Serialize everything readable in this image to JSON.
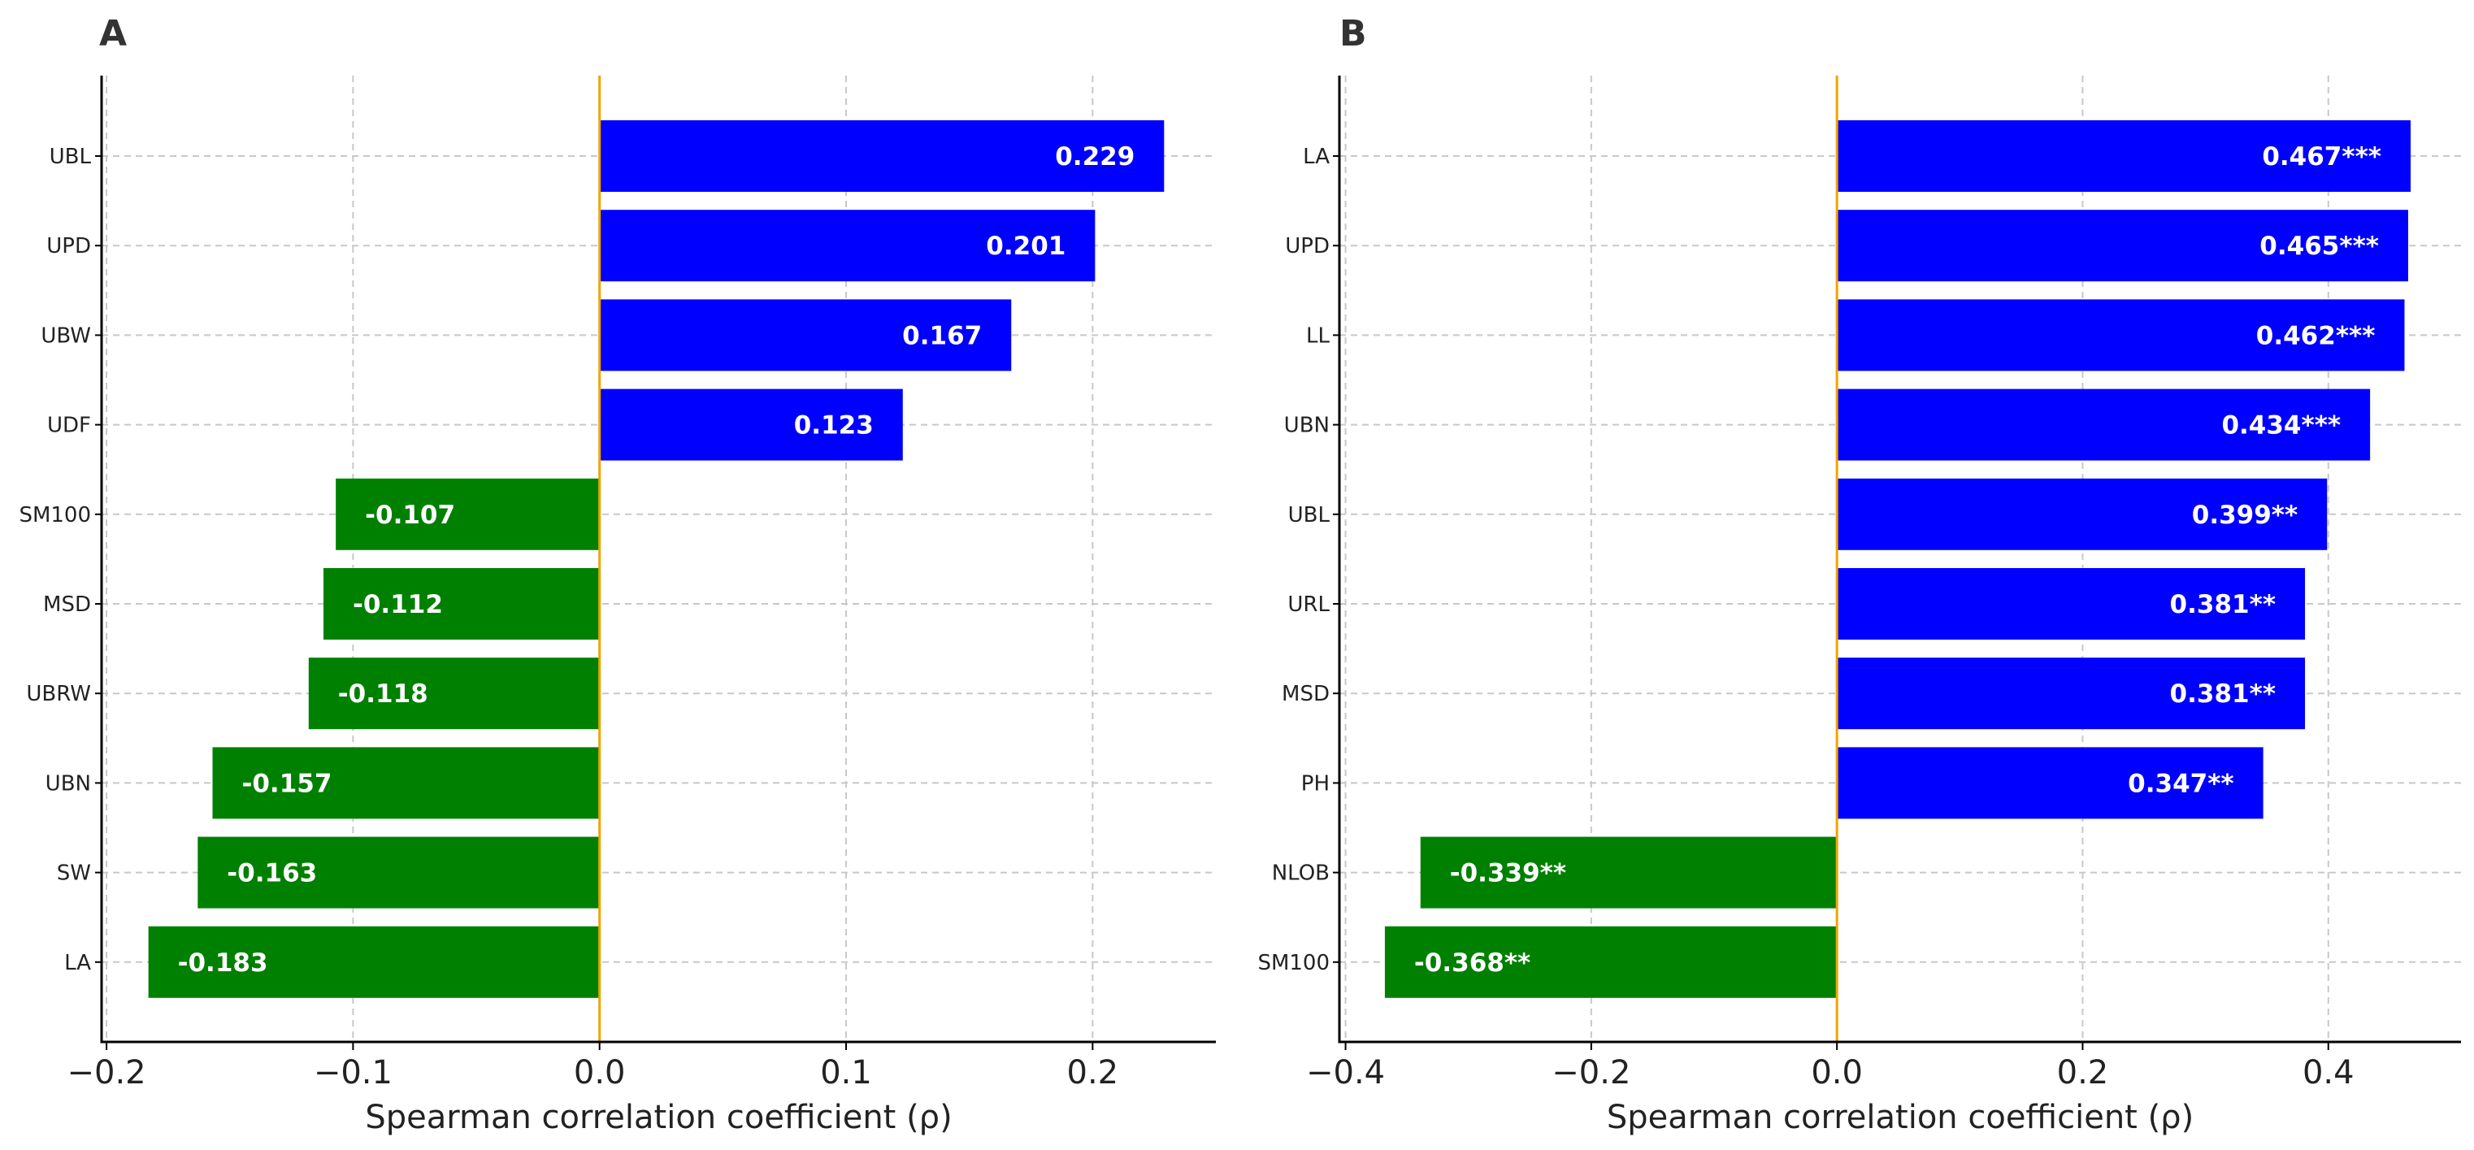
{
  "chart_data": [
    {
      "panel": "A",
      "type": "bar",
      "orientation": "horizontal",
      "categories": [
        "UBL",
        "UPD",
        "UBW",
        "UDF",
        "SM100",
        "MSD",
        "UBRW",
        "UBN",
        "SW",
        "LA"
      ],
      "values": [
        0.229,
        0.201,
        0.167,
        0.123,
        -0.107,
        -0.112,
        -0.118,
        -0.157,
        -0.163,
        -0.183
      ],
      "labels": [
        "0.229",
        "0.201",
        "0.167",
        "0.123",
        "-0.107",
        "-0.112",
        "-0.118",
        "-0.157",
        "-0.163",
        "-0.183"
      ],
      "xlabel": "Spearman correlation coefficient (ρ)",
      "xlim": [
        -0.202,
        0.25
      ],
      "xticks": [
        -0.2,
        -0.1,
        0.0,
        0.1,
        0.2
      ],
      "xtick_labels": [
        "−0.2",
        "−0.1",
        "0.0",
        "0.1",
        "0.2"
      ],
      "grid": true
    },
    {
      "panel": "B",
      "type": "bar",
      "orientation": "horizontal",
      "categories": [
        "LA",
        "UPD",
        "LL",
        "UBN",
        "UBL",
        "URL",
        "MSD",
        "PH",
        "NLOB",
        "SM100"
      ],
      "values": [
        0.467,
        0.465,
        0.462,
        0.434,
        0.399,
        0.381,
        0.381,
        0.347,
        -0.339,
        -0.368
      ],
      "labels": [
        "0.467***",
        "0.465***",
        "0.462***",
        "0.434***",
        "0.399**",
        "0.381**",
        "0.381**",
        "0.347**",
        "-0.339**",
        "-0.368**"
      ],
      "xlabel": "Spearman correlation coefficient (ρ)",
      "xlim": [
        -0.405,
        0.508
      ],
      "xticks": [
        -0.4,
        -0.2,
        0.0,
        0.2,
        0.4
      ],
      "xtick_labels": [
        "−0.4",
        "−0.2",
        "0.0",
        "0.2",
        "0.4"
      ],
      "grid": true
    }
  ],
  "colors": {
    "positive": "#0000ff",
    "negative": "#008000",
    "zero_line": "#f0a400",
    "grid": "#c8c8c8"
  }
}
